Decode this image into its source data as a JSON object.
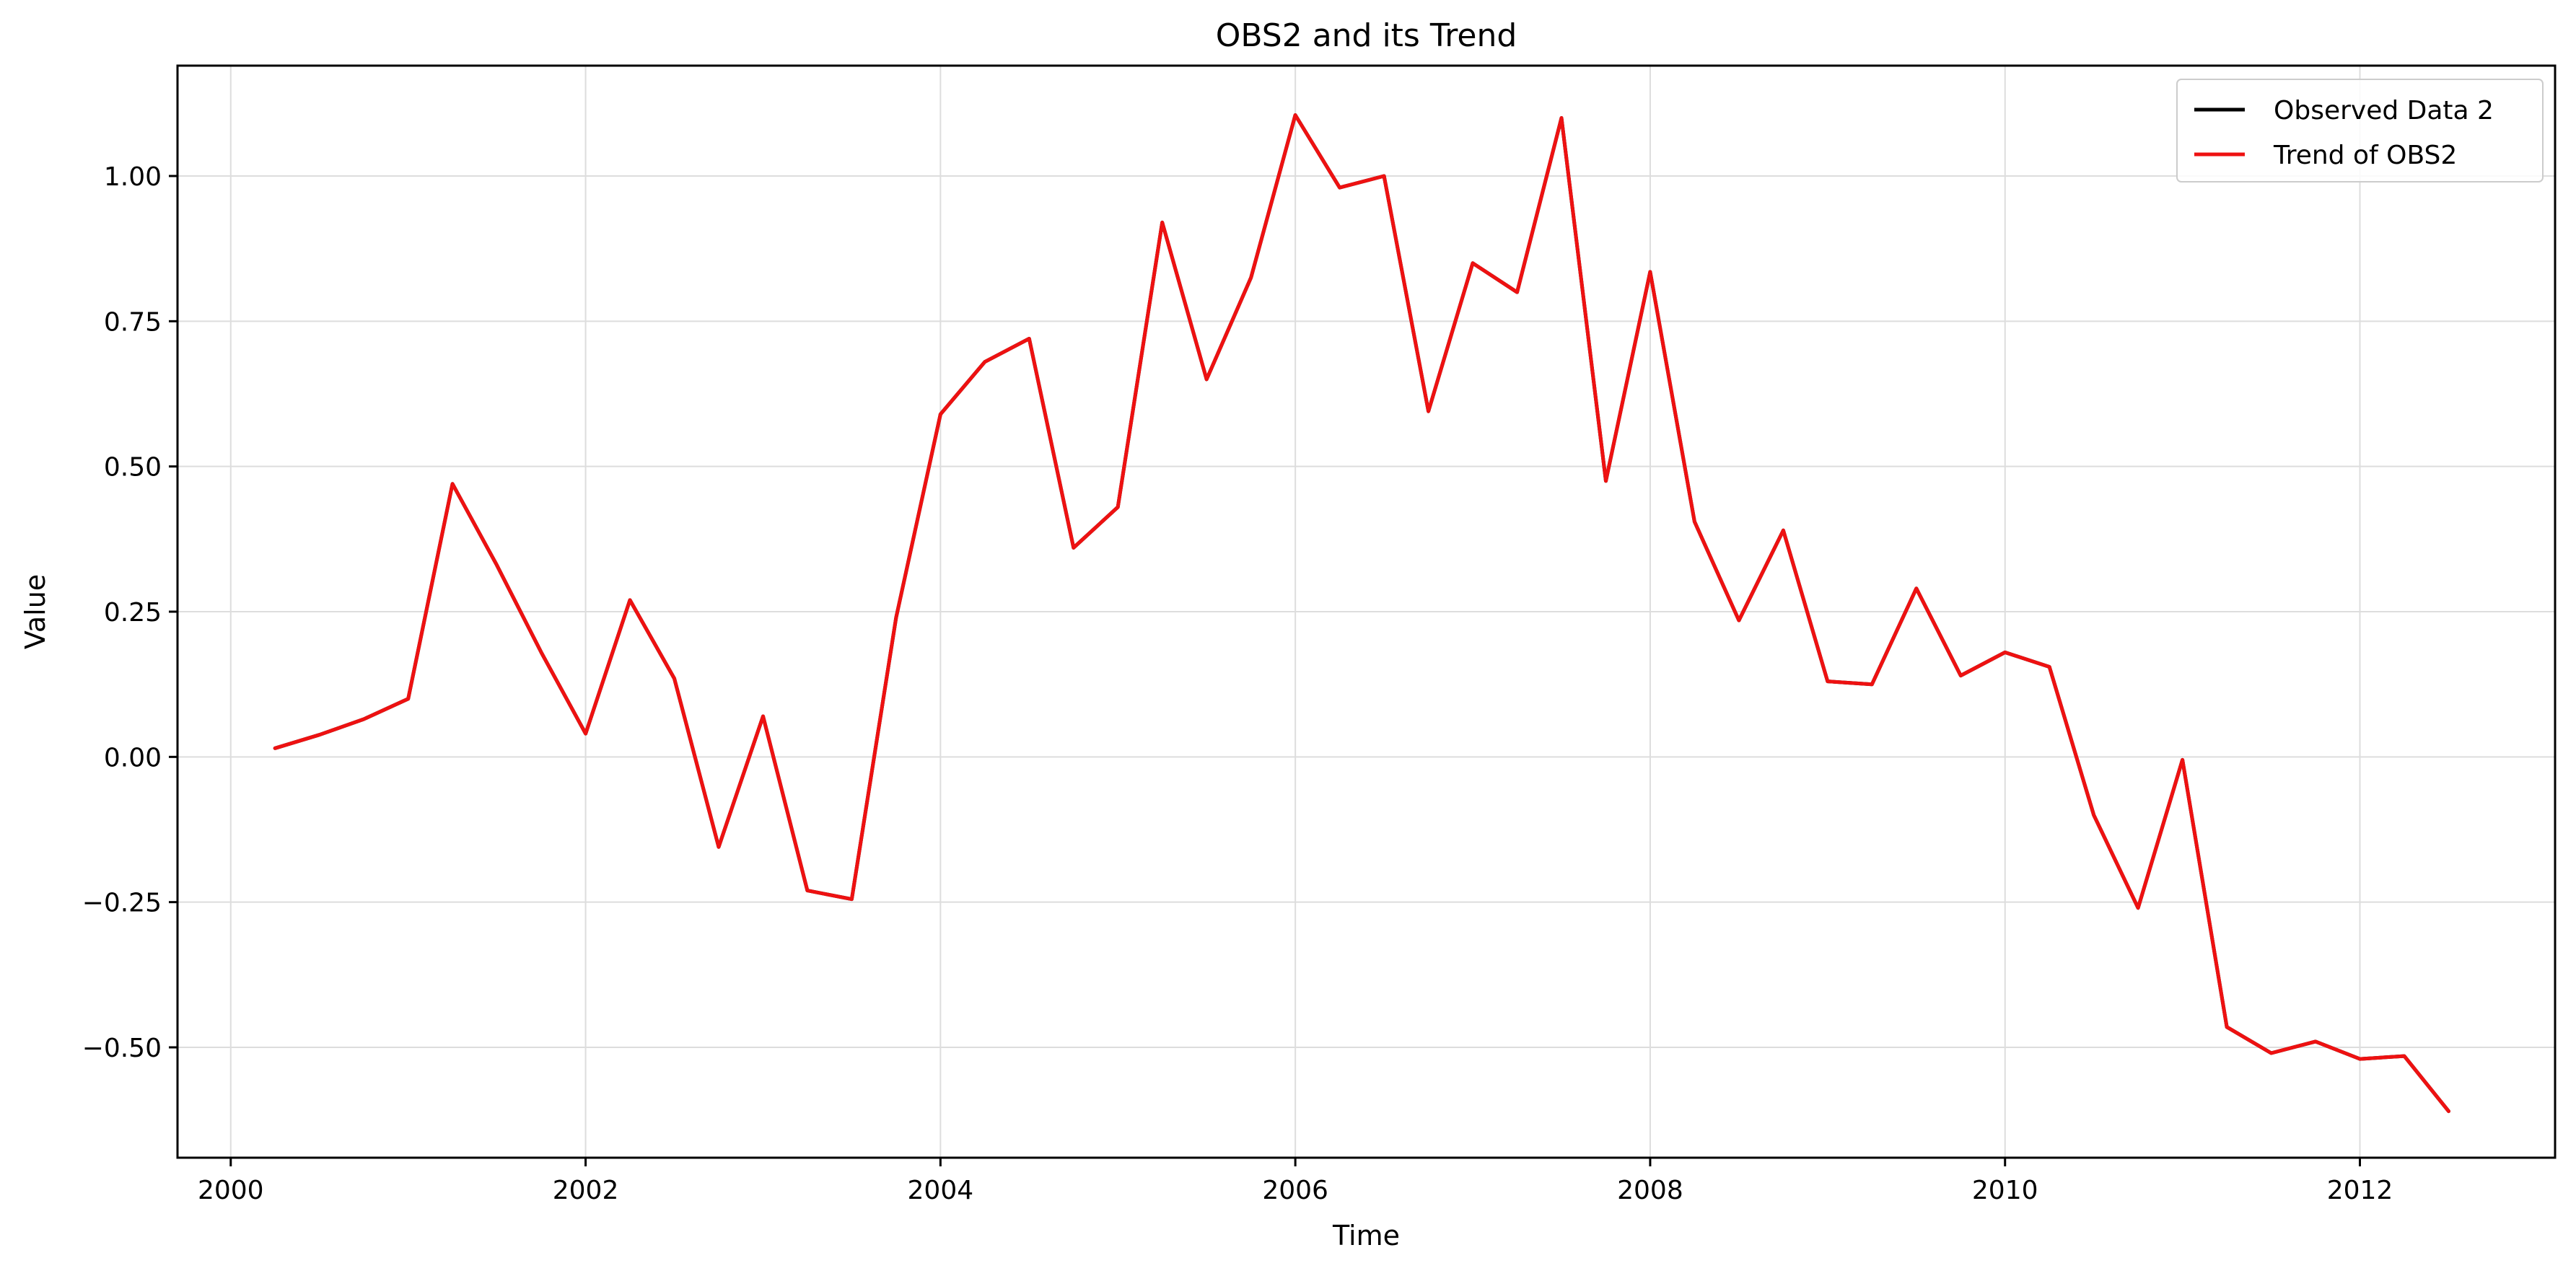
{
  "chart_data": {
    "type": "line",
    "title": "OBS2 and its Trend",
    "xlabel": "Time",
    "ylabel": "Value",
    "xlim": [
      1999.7,
      2013.1
    ],
    "ylim": [
      -0.69,
      1.19
    ],
    "x_ticks": [
      2000,
      2002,
      2004,
      2006,
      2008,
      2010,
      2012
    ],
    "x_tick_labels": [
      "2000",
      "2002",
      "2004",
      "2006",
      "2008",
      "2010",
      "2012"
    ],
    "y_ticks": [
      -0.5,
      -0.25,
      0.0,
      0.25,
      0.5,
      0.75,
      1.0
    ],
    "y_tick_labels": [
      "−0.50",
      "−0.25",
      "0.00",
      "0.25",
      "0.50",
      "0.75",
      "1.00"
    ],
    "grid": true,
    "legend_position": "top-right",
    "x": [
      2000.25,
      2000.5,
      2000.75,
      2001.0,
      2001.25,
      2001.5,
      2001.75,
      2002.0,
      2002.25,
      2002.5,
      2002.75,
      2003.0,
      2003.25,
      2003.5,
      2003.75,
      2004.0,
      2004.25,
      2004.5,
      2004.75,
      2005.0,
      2005.25,
      2005.5,
      2005.75,
      2006.0,
      2006.25,
      2006.5,
      2006.75,
      2007.0,
      2007.25,
      2007.5,
      2007.75,
      2008.0,
      2008.25,
      2008.5,
      2008.75,
      2009.0,
      2009.25,
      2009.5,
      2009.75,
      2010.0,
      2010.25,
      2010.5,
      2010.75,
      2011.0,
      2011.25,
      2011.5,
      2011.75,
      2012.0,
      2012.25,
      2012.5
    ],
    "series": [
      {
        "name": "Observed Data 2",
        "color": "#000000",
        "values": [
          0.015,
          0.038,
          0.065,
          0.1,
          0.47,
          0.33,
          0.18,
          0.04,
          0.27,
          0.135,
          -0.155,
          0.07,
          -0.23,
          -0.245,
          0.24,
          0.59,
          0.68,
          0.72,
          0.36,
          0.43,
          0.92,
          0.65,
          0.825,
          1.105,
          0.98,
          1.0,
          0.595,
          0.85,
          0.8,
          1.1,
          0.475,
          0.835,
          0.405,
          0.235,
          0.39,
          0.13,
          0.125,
          0.29,
          0.14,
          0.18,
          0.155,
          -0.1,
          -0.26,
          -0.005,
          -0.465,
          -0.51,
          -0.49,
          -0.52,
          -0.515,
          -0.61
        ]
      },
      {
        "name": "Trend of OBS2",
        "color": "#ee1111",
        "values": [
          0.015,
          0.038,
          0.065,
          0.1,
          0.47,
          0.33,
          0.18,
          0.04,
          0.27,
          0.135,
          -0.155,
          0.07,
          -0.23,
          -0.245,
          0.24,
          0.59,
          0.68,
          0.72,
          0.36,
          0.43,
          0.92,
          0.65,
          0.825,
          1.105,
          0.98,
          1.0,
          0.595,
          0.85,
          0.8,
          1.1,
          0.475,
          0.835,
          0.405,
          0.235,
          0.39,
          0.13,
          0.125,
          0.29,
          0.14,
          0.18,
          0.155,
          -0.1,
          -0.26,
          -0.005,
          -0.465,
          -0.51,
          -0.49,
          -0.52,
          -0.515,
          -0.61
        ]
      }
    ]
  }
}
